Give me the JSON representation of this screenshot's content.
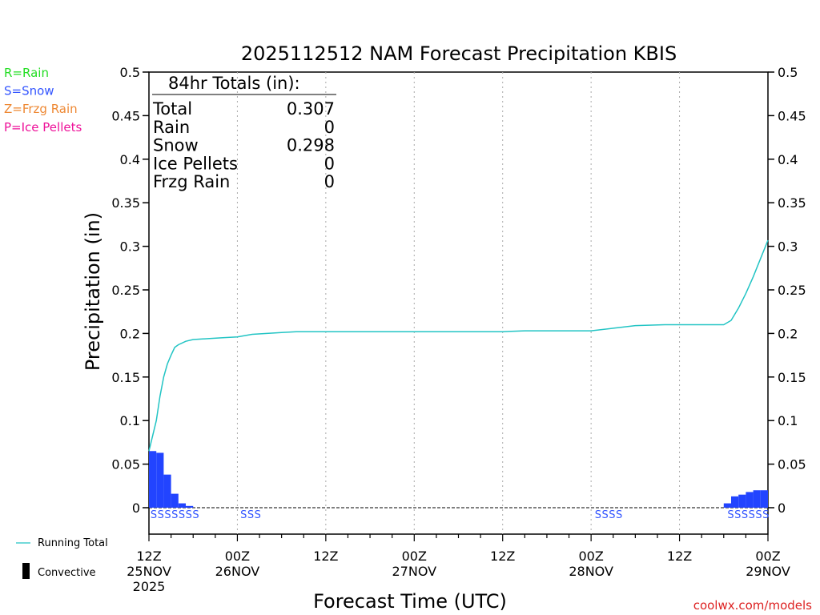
{
  "chart_data": {
    "type": "bar",
    "title": "2025112512 NAM Forecast Precipitation KBIS",
    "xlabel": "Forecast Time (UTC)",
    "ylabel": "Precipitation (in)",
    "ylim": [
      0,
      0.5
    ],
    "y_ticks": [
      "0",
      "0.05",
      "0.1",
      "0.15",
      "0.2",
      "0.25",
      "0.3",
      "0.35",
      "0.4",
      "0.45",
      "0.5"
    ],
    "xlim_hours": [
      0,
      84
    ],
    "x_ticks": [
      {
        "hour": 0,
        "line1": "12Z",
        "line2": "25NOV",
        "line3": "2025"
      },
      {
        "hour": 12,
        "line1": "00Z",
        "line2": "26NOV",
        "line3": ""
      },
      {
        "hour": 24,
        "line1": "12Z",
        "line2": "",
        "line3": ""
      },
      {
        "hour": 36,
        "line1": "00Z",
        "line2": "27NOV",
        "line3": ""
      },
      {
        "hour": 48,
        "line1": "12Z",
        "line2": "",
        "line3": ""
      },
      {
        "hour": 60,
        "line1": "00Z",
        "line2": "28NOV",
        "line3": ""
      },
      {
        "hour": 72,
        "line1": "12Z",
        "line2": "",
        "line3": ""
      },
      {
        "hour": 84,
        "line1": "00Z",
        "line2": "29NOV",
        "line3": ""
      }
    ],
    "grid": "vertical dotted",
    "hourly_bars": [
      {
        "hour": 1,
        "value": 0.065
      },
      {
        "hour": 2,
        "value": 0.063
      },
      {
        "hour": 3,
        "value": 0.038
      },
      {
        "hour": 4,
        "value": 0.016
      },
      {
        "hour": 5,
        "value": 0.005
      },
      {
        "hour": 6,
        "value": 0.002
      },
      {
        "hour": 79,
        "value": 0.005
      },
      {
        "hour": 80,
        "value": 0.013
      },
      {
        "hour": 81,
        "value": 0.015
      },
      {
        "hour": 82,
        "value": 0.018
      },
      {
        "hour": 83,
        "value": 0.02
      },
      {
        "hour": 84,
        "value": 0.02
      }
    ],
    "running_total": {
      "name": "Running Total",
      "x": [
        0,
        1,
        1.5,
        2,
        2.5,
        3,
        3.5,
        4,
        5,
        6,
        8,
        10,
        12,
        14,
        18,
        20,
        30,
        40,
        48,
        51,
        60,
        63,
        66,
        70,
        78,
        79,
        80,
        81,
        82,
        83,
        84
      ],
      "y": [
        0.065,
        0.1,
        0.128,
        0.15,
        0.165,
        0.175,
        0.184,
        0.187,
        0.191,
        0.193,
        0.194,
        0.195,
        0.196,
        0.199,
        0.201,
        0.202,
        0.202,
        0.202,
        0.202,
        0.203,
        0.203,
        0.206,
        0.209,
        0.21,
        0.21,
        0.215,
        0.229,
        0.246,
        0.265,
        0.286,
        0.307
      ]
    },
    "ptype_labels": [
      {
        "hour": 0.2,
        "text": "SSSSSSS"
      },
      {
        "hour": 12.4,
        "text": "SSS"
      },
      {
        "hour": 60.5,
        "text": "SSSS"
      },
      {
        "hour": 78.5,
        "text": "SSSSSS"
      }
    ],
    "totals_box": {
      "heading": "84hr Totals (in):",
      "rows": [
        {
          "label": "Total",
          "value": "0.307"
        },
        {
          "label": "Rain",
          "value": "0"
        },
        {
          "label": "Snow",
          "value": "0.298"
        },
        {
          "label": "Ice Pellets",
          "value": "0"
        },
        {
          "label": "Frzg Rain",
          "value": "0"
        }
      ]
    },
    "ptype_legend": [
      {
        "text": "R=Rain",
        "color": "#22dd22"
      },
      {
        "text": "S=Snow",
        "color": "#3355ff"
      },
      {
        "text": "Z=Frzg Rain",
        "color": "#ee8833"
      },
      {
        "text": "P=Ice Pellets",
        "color": "#ee1199"
      }
    ],
    "series_legend": {
      "running_total": "Running Total",
      "convective": "Convective"
    },
    "colors": {
      "bars": "#2244ff",
      "running_total": "#22c4c4",
      "snow_label": "#3355ff",
      "credit": "#dd2222",
      "grid": "#aaaaaa"
    },
    "credit": "coolwx.com/models"
  }
}
